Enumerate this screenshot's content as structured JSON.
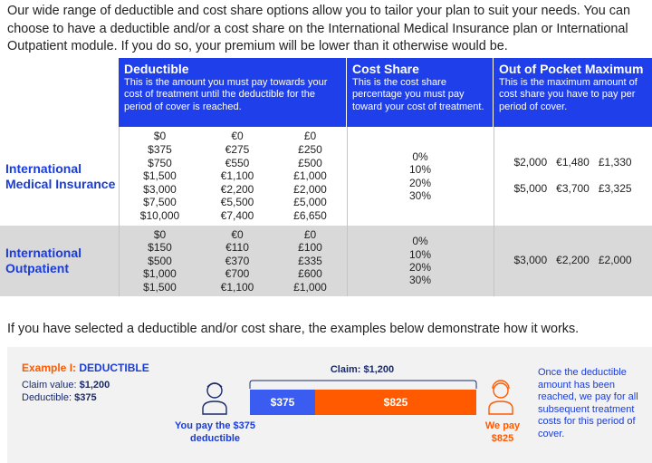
{
  "intro": "Our wide range of deductible and cost share options allow you to tailor your plan to suit your needs. You can choose to have a deductible and/or a cost share on the International Medical Insurance plan or International Outpatient module. If you do so, your premium will be lower than it otherwise would be.",
  "table": {
    "headers": [
      {
        "title": "Deductible",
        "desc": "This is the amount you must pay towards your cost of treatment until the deductible for the period of cover is reached."
      },
      {
        "title": "Cost Share",
        "desc": "This is the cost share percentage you must pay toward your cost of treatment."
      },
      {
        "title": "Out of Pocket Maximum",
        "desc": "This is the maximum amount of cost share you have to pay per period of cover."
      }
    ],
    "rows": [
      {
        "label": "International Medical Insurance",
        "usd": [
          "$0",
          "$375",
          "$750",
          "$1,500",
          "$3,000",
          "$7,500",
          "$10,000"
        ],
        "eur": [
          "€0",
          "€275",
          "€550",
          "€1,100",
          "€2,200",
          "€5,500",
          "€7,400"
        ],
        "gbp": [
          "£0",
          "£250",
          "£500",
          "£1,000",
          "£2,000",
          "£5,000",
          "£6,650"
        ],
        "cost_share": [
          "0%",
          "10%",
          "20%",
          "30%"
        ],
        "oop": [
          [
            "$2,000",
            "€1,480",
            "£1,330"
          ],
          [
            "$5,000",
            "€3,700",
            "£3,325"
          ]
        ]
      },
      {
        "label": "International Outpatient",
        "usd": [
          "$0",
          "$150",
          "$500",
          "$1,000",
          "$1,500"
        ],
        "eur": [
          "€0",
          "€110",
          "€370",
          "€700",
          "€1,100"
        ],
        "gbp": [
          "£0",
          "£100",
          "£335",
          "£600",
          "£1,000"
        ],
        "cost_share": [
          "0%",
          "10%",
          "20%",
          "30%"
        ],
        "oop": [
          [
            "$3,000",
            "€2,200",
            "£2,000"
          ]
        ]
      }
    ]
  },
  "examples_intro": "If you have selected a deductible and/or cost share, the examples below demonstrate how it works.",
  "example": {
    "label": "Example I:",
    "title": "DEDUCTIBLE",
    "claim_label": "Claim value:",
    "claim_value": "$1,200",
    "deductible_label": "Deductible:",
    "deductible_value": "$375",
    "bar_title": "Claim: $1,200",
    "bar_you": "$375",
    "bar_we": "$825",
    "you_pay": "You pay the $375 deductible",
    "we_pay": "We pay $825",
    "note": "Once the deductible amount has been reached, we pay for all subsequent treatment costs for this period of cover."
  }
}
